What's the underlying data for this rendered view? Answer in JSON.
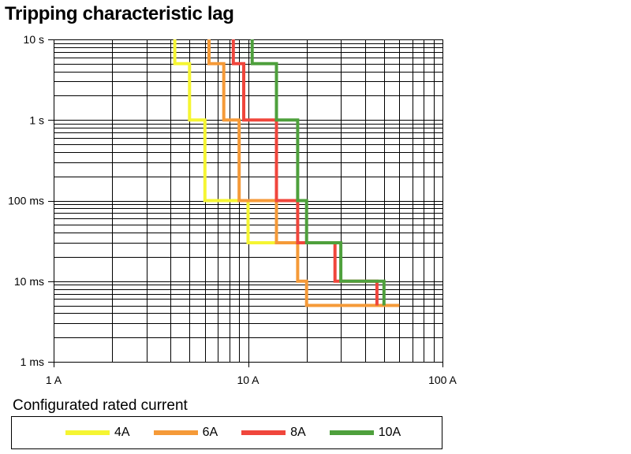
{
  "chart_data": {
    "type": "line",
    "title": "Tripping characteristic lag",
    "x_scale": "log",
    "y_scale": "log",
    "xlim": [
      1,
      100
    ],
    "ylim": [
      0.001,
      10
    ],
    "x_ticks": [
      {
        "value": 1,
        "label": "1 A"
      },
      {
        "value": 10,
        "label": "10 A"
      },
      {
        "value": 100,
        "label": "100 A"
      }
    ],
    "y_ticks": [
      {
        "value": 10,
        "label": "10 s"
      },
      {
        "value": 1,
        "label": "1 s"
      },
      {
        "value": 0.1,
        "label": "100 ms"
      },
      {
        "value": 0.01,
        "label": "10 ms"
      },
      {
        "value": 0.001,
        "label": "1 ms"
      }
    ],
    "grid": true,
    "legend_title": "Configurated rated current",
    "legend_position": "bottom",
    "series": [
      {
        "name": "4A",
        "color": "#f5f532",
        "points": [
          [
            4.2,
            10
          ],
          [
            4.2,
            5
          ],
          [
            5,
            5
          ],
          [
            5,
            1
          ],
          [
            6,
            1
          ],
          [
            6,
            0.1
          ],
          [
            10,
            0.1
          ],
          [
            10,
            0.03
          ],
          [
            14,
            0.03
          ]
        ]
      },
      {
        "name": "6A",
        "color": "#f59a38",
        "points": [
          [
            6.3,
            10
          ],
          [
            6.3,
            5
          ],
          [
            7.5,
            5
          ],
          [
            7.5,
            1
          ],
          [
            9,
            1
          ],
          [
            9,
            0.1
          ],
          [
            14,
            0.1
          ],
          [
            14,
            0.03
          ],
          [
            18,
            0.03
          ],
          [
            18,
            0.01
          ],
          [
            20,
            0.01
          ],
          [
            20,
            0.005
          ],
          [
            60,
            0.005
          ]
        ]
      },
      {
        "name": "8A",
        "color": "#f0463c",
        "points": [
          [
            8.4,
            10
          ],
          [
            8.4,
            5
          ],
          [
            9.5,
            5
          ],
          [
            9.5,
            1
          ],
          [
            14,
            1
          ],
          [
            14,
            0.1
          ],
          [
            18,
            0.1
          ],
          [
            18,
            0.03
          ],
          [
            28,
            0.03
          ],
          [
            28,
            0.01
          ],
          [
            46,
            0.01
          ],
          [
            46,
            0.005
          ]
        ]
      },
      {
        "name": "10A",
        "color": "#4ea03c",
        "points": [
          [
            10.5,
            10
          ],
          [
            10.5,
            5
          ],
          [
            14,
            5
          ],
          [
            14,
            1
          ],
          [
            18,
            1
          ],
          [
            18,
            0.1
          ],
          [
            20,
            0.1
          ],
          [
            20,
            0.03
          ],
          [
            30,
            0.03
          ],
          [
            30,
            0.01
          ],
          [
            50,
            0.01
          ],
          [
            50,
            0.005
          ]
        ]
      }
    ]
  }
}
